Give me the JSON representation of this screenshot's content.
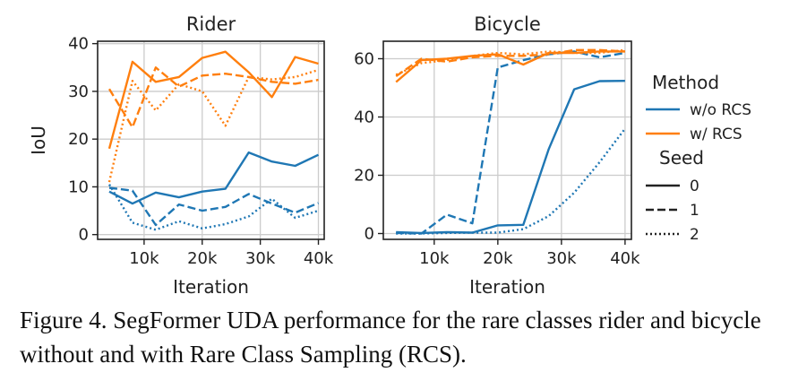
{
  "chart_data": [
    {
      "type": "line",
      "title": "Rider",
      "xlabel": "Iteration",
      "ylabel": "IoU",
      "xlim": [
        2000,
        41000
      ],
      "ylim": [
        -1,
        40.5
      ],
      "xticks": [
        10000,
        20000,
        30000,
        40000
      ],
      "xtick_labels": [
        "10k",
        "20k",
        "30k",
        "40k"
      ],
      "yticks": [
        0,
        10,
        20,
        30,
        40
      ],
      "ytick_labels": [
        "0",
        "10",
        "20",
        "30",
        "40"
      ],
      "grid": true,
      "x": [
        4000,
        8000,
        12000,
        16000,
        20000,
        24000,
        28000,
        32000,
        36000,
        40000
      ],
      "series": [
        {
          "method": "w/o RCS",
          "seed": "0",
          "color": "#1f77b4",
          "style": "solid",
          "values": [
            9.0,
            6.5,
            8.8,
            7.8,
            9.0,
            9.6,
            17.2,
            15.3,
            14.4,
            16.7
          ]
        },
        {
          "method": "w/o RCS",
          "seed": "1",
          "color": "#1f77b4",
          "style": "dashed",
          "values": [
            9.8,
            9.2,
            2.0,
            6.3,
            5.0,
            5.8,
            8.5,
            6.5,
            4.6,
            6.6
          ]
        },
        {
          "method": "w/o RCS",
          "seed": "2",
          "color": "#1f77b4",
          "style": "dotted",
          "values": [
            10.5,
            2.5,
            1.0,
            2.8,
            1.3,
            2.2,
            3.8,
            7.5,
            3.5,
            5.0
          ]
        },
        {
          "method": "w/ RCS",
          "seed": "0",
          "color": "#ff7f0e",
          "style": "solid",
          "values": [
            18.0,
            36.2,
            32.0,
            33.0,
            37.0,
            38.3,
            34.0,
            28.8,
            37.2,
            35.8
          ]
        },
        {
          "method": "w/ RCS",
          "seed": "1",
          "color": "#ff7f0e",
          "style": "dashed",
          "values": [
            30.5,
            22.5,
            35.0,
            31.0,
            33.3,
            33.7,
            33.0,
            32.0,
            31.6,
            32.4
          ]
        },
        {
          "method": "w/ RCS",
          "seed": "2",
          "color": "#ff7f0e",
          "style": "dotted",
          "values": [
            11.0,
            32.2,
            26.0,
            31.5,
            30.0,
            22.8,
            33.0,
            32.5,
            33.0,
            34.5
          ]
        }
      ]
    },
    {
      "type": "line",
      "title": "Bicycle",
      "xlabel": "Iteration",
      "ylabel": "",
      "xlim": [
        2000,
        41000
      ],
      "ylim": [
        -2,
        66
      ],
      "xticks": [
        10000,
        20000,
        30000,
        40000
      ],
      "xtick_labels": [
        "10k",
        "20k",
        "30k",
        "40k"
      ],
      "yticks": [
        0,
        20,
        40,
        60
      ],
      "ytick_labels": [
        "0",
        "20",
        "40",
        "60"
      ],
      "grid": true,
      "x": [
        4000,
        8000,
        12000,
        16000,
        20000,
        24000,
        28000,
        32000,
        36000,
        40000
      ],
      "series": [
        {
          "method": "w/o RCS",
          "seed": "0",
          "color": "#1f77b4",
          "style": "solid",
          "values": [
            0.5,
            0.2,
            0.5,
            0.3,
            2.8,
            3.0,
            29.0,
            49.5,
            52.3,
            52.4
          ]
        },
        {
          "method": "w/o RCS",
          "seed": "1",
          "color": "#1f77b4",
          "style": "dashed",
          "values": [
            0.2,
            0.0,
            6.5,
            3.5,
            57.0,
            59.5,
            61.5,
            62.5,
            60.5,
            62.0
          ]
        },
        {
          "method": "w/o RCS",
          "seed": "2",
          "color": "#1f77b4",
          "style": "dotted",
          "values": [
            0.0,
            0.0,
            0.2,
            0.3,
            0.3,
            1.5,
            6.0,
            14.0,
            24.5,
            36.0
          ]
        },
        {
          "method": "w/ RCS",
          "seed": "0",
          "color": "#ff7f0e",
          "style": "solid",
          "values": [
            52.0,
            59.5,
            60.0,
            61.0,
            61.5,
            58.0,
            62.0,
            62.0,
            62.5,
            62.5
          ]
        },
        {
          "method": "w/ RCS",
          "seed": "1",
          "color": "#ff7f0e",
          "style": "dashed",
          "values": [
            54.0,
            60.0,
            59.0,
            60.5,
            61.0,
            61.0,
            61.5,
            63.0,
            63.0,
            62.5
          ]
        },
        {
          "method": "w/ RCS",
          "seed": "2",
          "color": "#ff7f0e",
          "style": "dotted",
          "values": [
            54.5,
            58.5,
            59.5,
            61.0,
            62.0,
            61.5,
            62.5,
            62.0,
            62.0,
            63.0
          ]
        }
      ]
    }
  ],
  "legend": {
    "method_title": "Method",
    "methods": [
      {
        "label": "w/o RCS",
        "color": "#1f77b4"
      },
      {
        "label": "w/ RCS",
        "color": "#ff7f0e"
      }
    ],
    "seed_title": "Seed",
    "seeds": [
      {
        "label": "0",
        "style": "solid"
      },
      {
        "label": "1",
        "style": "dashed"
      },
      {
        "label": "2",
        "style": "dotted"
      }
    ]
  },
  "caption": "Figure 4. SegFormer UDA performance for the rare classes rider and bicycle without and with Rare Class Sampling (RCS)."
}
